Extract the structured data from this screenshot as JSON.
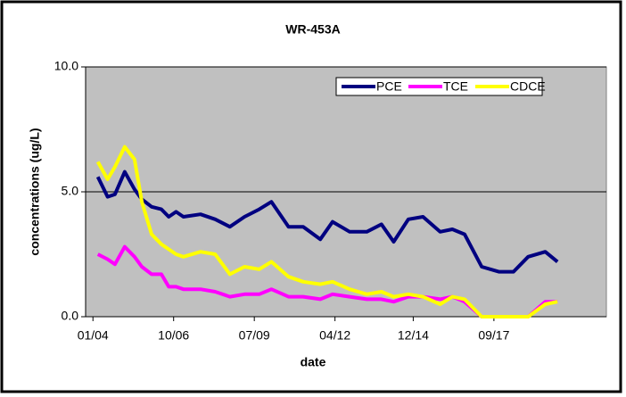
{
  "chart_data": {
    "type": "line",
    "title": "WR-453A",
    "x_label": "date",
    "y_label": "concentrations (ug/L)",
    "x": [
      "2004-03",
      "2004-07",
      "2004-10",
      "2005-02",
      "2005-06",
      "2005-09",
      "2006-01",
      "2006-05",
      "2006-08",
      "2006-11",
      "2007-02",
      "2007-09",
      "2008-03",
      "2008-09",
      "2009-03",
      "2009-09",
      "2010-02",
      "2010-09",
      "2011-03",
      "2011-10",
      "2012-03",
      "2012-10",
      "2013-05",
      "2013-11",
      "2014-04",
      "2014-10",
      "2015-04",
      "2015-11",
      "2016-04",
      "2016-09",
      "2017-04",
      "2017-11",
      "2018-05",
      "2018-11",
      "2019-06",
      "2019-11"
    ],
    "series": [
      {
        "name": "PCE",
        "color": "#000080",
        "values": [
          5.6,
          4.8,
          4.9,
          5.8,
          5.1,
          4.7,
          4.4,
          4.3,
          4.0,
          4.2,
          4.0,
          4.1,
          3.9,
          3.6,
          4.0,
          4.3,
          4.6,
          3.6,
          3.6,
          3.1,
          3.8,
          3.4,
          3.4,
          3.7,
          3.0,
          3.9,
          4.0,
          3.4,
          3.5,
          3.3,
          2.0,
          1.8,
          1.8,
          2.4,
          2.6,
          2.2
        ]
      },
      {
        "name": "TCE",
        "color": "#ff00ff",
        "values": [
          2.5,
          2.3,
          2.1,
          2.8,
          2.4,
          2.0,
          1.7,
          1.7,
          1.2,
          1.2,
          1.1,
          1.1,
          1.0,
          0.8,
          0.9,
          0.9,
          1.1,
          0.8,
          0.8,
          0.7,
          0.9,
          0.8,
          0.7,
          0.7,
          0.6,
          0.8,
          0.8,
          0.7,
          0.8,
          0.6,
          0.0,
          0.0,
          0.0,
          0.0,
          0.6,
          0.6
        ]
      },
      {
        "name": "CDCE",
        "color": "#ffff00",
        "values": [
          6.2,
          5.5,
          6.0,
          6.8,
          6.3,
          4.6,
          3.3,
          2.9,
          2.7,
          2.5,
          2.4,
          2.6,
          2.5,
          1.7,
          2.0,
          1.9,
          2.2,
          1.6,
          1.4,
          1.3,
          1.4,
          1.1,
          0.9,
          1.0,
          0.8,
          0.9,
          0.8,
          0.5,
          0.8,
          0.7,
          0.0,
          0.0,
          0.0,
          0.0,
          0.5,
          0.6
        ]
      }
    ],
    "xlim": [
      "2003-10",
      "2021-07"
    ],
    "xticks": [
      {
        "value": "2004-01",
        "label": "01/04"
      },
      {
        "value": "2006-10",
        "label": "10/06"
      },
      {
        "value": "2009-07",
        "label": "07/09"
      },
      {
        "value": "2012-04",
        "label": "04/12"
      },
      {
        "value": "2014-12",
        "label": "12/14"
      },
      {
        "value": "2017-09",
        "label": "09/17"
      }
    ],
    "ylim": [
      0,
      10
    ],
    "yticks": [
      {
        "value": 0,
        "label": "0.0"
      },
      {
        "value": 5,
        "label": "5.0"
      },
      {
        "value": 10,
        "label": "10.0"
      }
    ],
    "grid": true,
    "legend": "upper right",
    "plot_color": "#c0c0c0"
  }
}
